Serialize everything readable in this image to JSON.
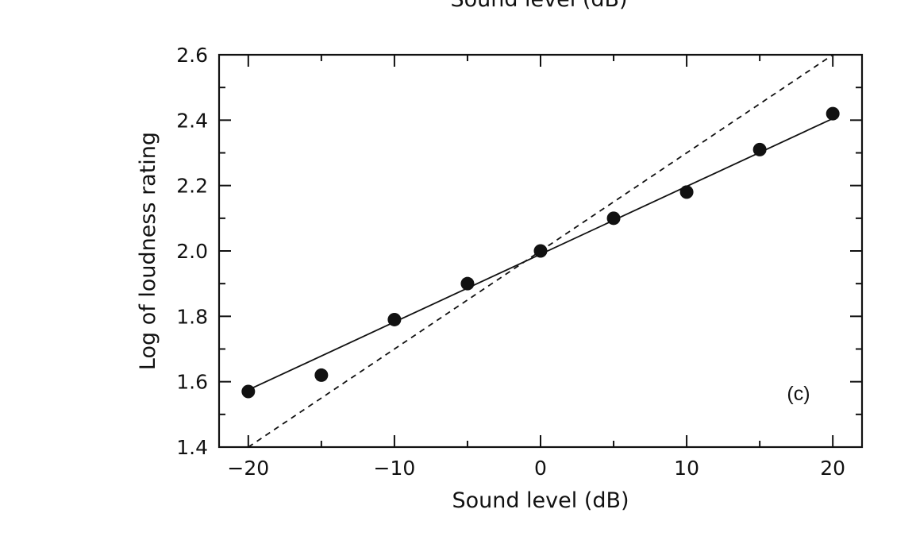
{
  "chart_data": {
    "type": "scatter",
    "title": "",
    "top_cropped_text": "Sound level (dB)",
    "xlabel": "Sound level (dB)",
    "ylabel": "Log of loudness rating",
    "xlim": [
      -22,
      22
    ],
    "ylim": [
      1.4,
      2.6
    ],
    "x_ticks": [
      -20,
      -10,
      0,
      10,
      20
    ],
    "x_tick_labels": [
      "−20",
      "−10",
      "0",
      "10",
      "20"
    ],
    "y_ticks": [
      1.4,
      1.6,
      1.8,
      2.0,
      2.2,
      2.4,
      2.6
    ],
    "y_tick_labels": [
      "1.4",
      "1.6",
      "1.8",
      "2.0",
      "2.2",
      "2.4",
      "2.6"
    ],
    "grid": false,
    "points": [
      {
        "x": -20,
        "y": 1.57
      },
      {
        "x": -15,
        "y": 1.62
      },
      {
        "x": -10,
        "y": 1.79
      },
      {
        "x": -5,
        "y": 1.9
      },
      {
        "x": 0,
        "y": 2.0
      },
      {
        "x": 5,
        "y": 2.1
      },
      {
        "x": 10,
        "y": 2.18
      },
      {
        "x": 15,
        "y": 2.31
      },
      {
        "x": 20,
        "y": 2.42
      }
    ],
    "fit_line": {
      "x": [
        -20,
        20
      ],
      "y": [
        1.575,
        2.405
      ]
    },
    "reference_line": {
      "style": "dashed",
      "x": [
        -20,
        20
      ],
      "y": [
        1.4,
        2.6
      ]
    },
    "annotation": "(c)"
  }
}
